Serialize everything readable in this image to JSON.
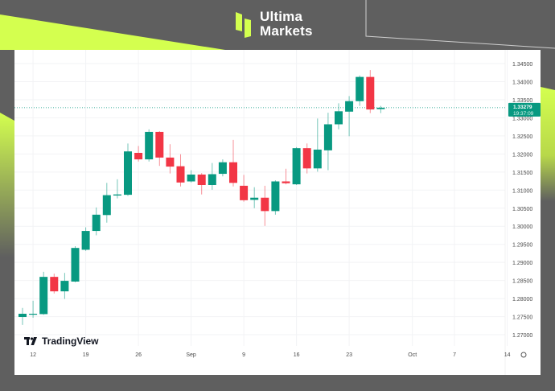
{
  "brand": {
    "line1": "Ultima",
    "line2": "Markets",
    "accent": "#d4ff4f"
  },
  "watermark": "TradingView",
  "chart_data": {
    "type": "candlestick",
    "up_color": "#089981",
    "down_color": "#f23645",
    "y_ticks": [
      "1.34500",
      "1.34000",
      "1.33500",
      "1.33000",
      "1.32500",
      "1.32000",
      "1.31500",
      "1.31000",
      "1.30500",
      "1.30000",
      "1.29500",
      "1.29000",
      "1.28500",
      "1.28000",
      "1.27500",
      "1.27000"
    ],
    "ylim": [
      1.27,
      1.345
    ],
    "x_ticks": [
      {
        "label": "12",
        "date": "08-12"
      },
      {
        "label": "19",
        "date": "08-19"
      },
      {
        "label": "26",
        "date": "08-26"
      },
      {
        "label": "Sep",
        "date": "09-02"
      },
      {
        "label": "9",
        "date": "09-09"
      },
      {
        "label": "16",
        "date": "09-16"
      },
      {
        "label": "23",
        "date": "09-23"
      },
      {
        "label": "Oct",
        "date": "10-01"
      },
      {
        "label": "7",
        "date": "10-07"
      },
      {
        "label": "14",
        "date": "10-14"
      }
    ],
    "last_price": "1.33279",
    "countdown": "19:37:09",
    "grid": true,
    "candles": [
      {
        "date": "08-09",
        "o": 1.2749,
        "h": 1.2774,
        "l": 1.2727,
        "c": 1.2758
      },
      {
        "date": "08-12",
        "o": 1.2756,
        "h": 1.2794,
        "l": 1.2747,
        "c": 1.2758
      },
      {
        "date": "08-13",
        "o": 1.2757,
        "h": 1.2874,
        "l": 1.2755,
        "c": 1.286
      },
      {
        "date": "08-14",
        "o": 1.286,
        "h": 1.2869,
        "l": 1.2814,
        "c": 1.282
      },
      {
        "date": "08-15",
        "o": 1.282,
        "h": 1.2871,
        "l": 1.2799,
        "c": 1.2849
      },
      {
        "date": "08-16",
        "o": 1.2847,
        "h": 1.2945,
        "l": 1.2845,
        "c": 1.294
      },
      {
        "date": "08-19",
        "o": 1.2935,
        "h": 1.2997,
        "l": 1.2932,
        "c": 1.2987
      },
      {
        "date": "08-20",
        "o": 1.2987,
        "h": 1.3052,
        "l": 1.2975,
        "c": 1.3032
      },
      {
        "date": "08-21",
        "o": 1.3031,
        "h": 1.312,
        "l": 1.301,
        "c": 1.3086
      },
      {
        "date": "08-22",
        "o": 1.3085,
        "h": 1.313,
        "l": 1.3077,
        "c": 1.3088
      },
      {
        "date": "08-23",
        "o": 1.3087,
        "h": 1.3229,
        "l": 1.3084,
        "c": 1.3207
      },
      {
        "date": "08-26",
        "o": 1.3203,
        "h": 1.3222,
        "l": 1.3179,
        "c": 1.3185
      },
      {
        "date": "08-27",
        "o": 1.3185,
        "h": 1.3268,
        "l": 1.3179,
        "c": 1.3261
      },
      {
        "date": "08-28",
        "o": 1.3261,
        "h": 1.3263,
        "l": 1.3167,
        "c": 1.319
      },
      {
        "date": "08-29",
        "o": 1.319,
        "h": 1.3227,
        "l": 1.3146,
        "c": 1.3165
      },
      {
        "date": "08-30",
        "o": 1.3166,
        "h": 1.3199,
        "l": 1.311,
        "c": 1.3121
      },
      {
        "date": "09-02",
        "o": 1.3124,
        "h": 1.3155,
        "l": 1.3121,
        "c": 1.3143
      },
      {
        "date": "09-03",
        "o": 1.3143,
        "h": 1.3147,
        "l": 1.3088,
        "c": 1.3114
      },
      {
        "date": "09-04",
        "o": 1.3114,
        "h": 1.3175,
        "l": 1.3101,
        "c": 1.3144
      },
      {
        "date": "09-05",
        "o": 1.3145,
        "h": 1.3185,
        "l": 1.3138,
        "c": 1.3177
      },
      {
        "date": "09-06",
        "o": 1.3177,
        "h": 1.3239,
        "l": 1.311,
        "c": 1.312
      },
      {
        "date": "09-09",
        "o": 1.3112,
        "h": 1.3142,
        "l": 1.3068,
        "c": 1.3072
      },
      {
        "date": "09-10",
        "o": 1.3073,
        "h": 1.3108,
        "l": 1.305,
        "c": 1.3079
      },
      {
        "date": "09-11",
        "o": 1.3079,
        "h": 1.3112,
        "l": 1.3001,
        "c": 1.3042
      },
      {
        "date": "09-12",
        "o": 1.3042,
        "h": 1.3127,
        "l": 1.3032,
        "c": 1.3124
      },
      {
        "date": "09-13",
        "o": 1.3124,
        "h": 1.3159,
        "l": 1.3116,
        "c": 1.3119
      },
      {
        "date": "09-16",
        "o": 1.3116,
        "h": 1.3219,
        "l": 1.3114,
        "c": 1.3216
      },
      {
        "date": "09-17",
        "o": 1.3216,
        "h": 1.3229,
        "l": 1.3146,
        "c": 1.316
      },
      {
        "date": "09-18",
        "o": 1.316,
        "h": 1.3298,
        "l": 1.3151,
        "c": 1.3212
      },
      {
        "date": "09-19",
        "o": 1.321,
        "h": 1.3314,
        "l": 1.3155,
        "c": 1.3282
      },
      {
        "date": "09-20",
        "o": 1.3282,
        "h": 1.334,
        "l": 1.3268,
        "c": 1.3318
      },
      {
        "date": "09-23",
        "o": 1.3317,
        "h": 1.336,
        "l": 1.3249,
        "c": 1.3346
      },
      {
        "date": "09-24",
        "o": 1.3346,
        "h": 1.3417,
        "l": 1.3333,
        "c": 1.3413
      },
      {
        "date": "09-25",
        "o": 1.3413,
        "h": 1.3432,
        "l": 1.3313,
        "c": 1.3323
      },
      {
        "date": "09-26",
        "o": 1.3324,
        "h": 1.3333,
        "l": 1.3313,
        "c": 1.33279
      }
    ]
  }
}
